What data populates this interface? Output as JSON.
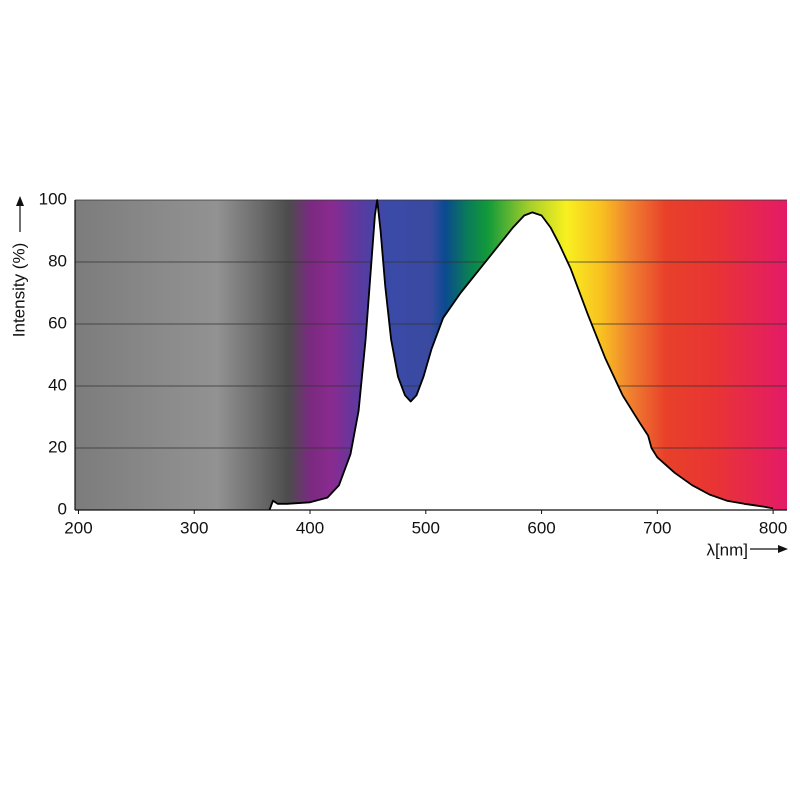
{
  "chart_data": {
    "type": "area",
    "x_label": "λ[nm]",
    "y_label": "Intensity (%)",
    "x": [
      365,
      368,
      372,
      380,
      400,
      415,
      425,
      435,
      442,
      448,
      453,
      456,
      458,
      461,
      465,
      470,
      476,
      482,
      487,
      492,
      498,
      505,
      515,
      530,
      545,
      560,
      575,
      585,
      592,
      600,
      608,
      615,
      625,
      640,
      655,
      670,
      685,
      692,
      695,
      700,
      715,
      730,
      745,
      760,
      775,
      790,
      800
    ],
    "series": [
      {
        "name": "Intensity",
        "color": "#000000",
        "values": [
          0,
          3,
          2,
          2,
          2.5,
          4,
          8,
          18,
          32,
          55,
          80,
          95,
          100,
          90,
          72,
          55,
          43,
          37,
          35,
          37,
          43,
          52,
          62,
          70,
          77,
          84,
          91,
          95,
          96,
          95,
          91,
          86,
          78,
          63,
          49,
          37,
          28,
          24,
          20,
          17,
          12,
          8,
          5,
          3,
          2,
          1.2,
          0.5
        ]
      }
    ],
    "xlim": [
      197,
      812
    ],
    "ylim": [
      0,
      100
    ],
    "xticks": [
      200,
      300,
      400,
      500,
      600,
      700,
      800
    ],
    "yticks": [
      0,
      20,
      40,
      60,
      80,
      100
    ],
    "grid": true
  }
}
